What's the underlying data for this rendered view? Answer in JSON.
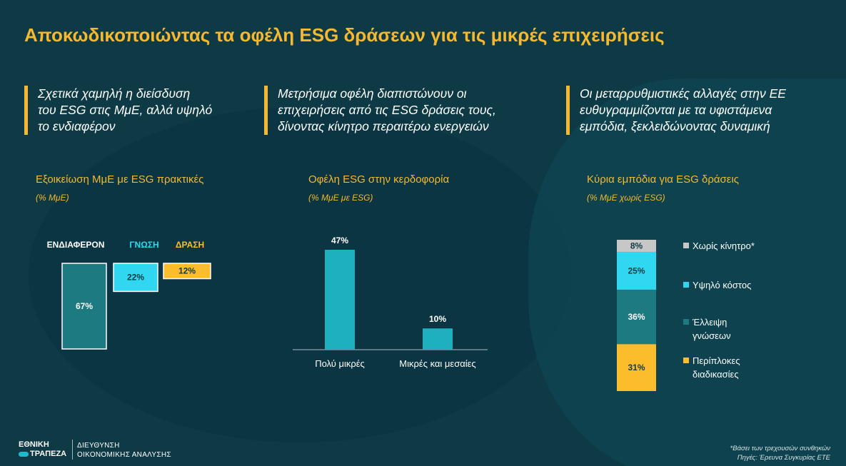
{
  "title": "Αποκωδικοποιώντας τα οφέλη ESG δράσεων για τις μικρές επιχειρήσεις",
  "columns": [
    {
      "heading": [
        "Σχετικά χαμηλή η διείσδυση",
        "του ESG στις ΜμΕ, αλλά υψηλό",
        "το ενδιαφέρον"
      ]
    },
    {
      "heading": [
        "Μετρήσιμα οφέλη διαπιστώνουν οι",
        "επιχειρήσεις από τις ESG δράσεις τους,",
        "δίνοντας κίνητρο περαιτέρω ενεργειών"
      ]
    },
    {
      "heading": [
        "Οι μεταρρυθμιστικές αλλαγές στην ΕΕ",
        "ευθυγραμμίζονται με τα υφιστάμενα",
        "εμπόδια, ξεκλειδώνοντας δυναμική"
      ]
    }
  ],
  "colors": {
    "dark_teal": "#1c7a80",
    "cyan": "#2fd8f0",
    "amber": "#fbbd2c",
    "grey": "#c7c7c7",
    "bar_teal": "#1fb0c0"
  },
  "chart_data": [
    {
      "type": "bar",
      "title": "Εξοικείωση ΜμΕ με ESG πρακτικές",
      "subtitle": "(% ΜμΕ)",
      "categories": [
        "ΕΝΔΙΑΦΕΡΟΝ",
        "ΓΝΩΣΗ",
        "ΔΡΑΣΗ"
      ],
      "values": [
        67,
        22,
        12
      ],
      "labels": [
        "67%",
        "22%",
        "12%"
      ],
      "category_colors": [
        "#ffffff",
        "#2fd8f0",
        "#fbbd2c"
      ],
      "bar_colors": [
        "#1c7a80",
        "#2fd8f0",
        "#fbbd2c"
      ]
    },
    {
      "type": "bar",
      "title": "Οφέλη ESG στην κερδοφορία",
      "subtitle": "(% ΜμΕ με ESG)",
      "categories": [
        "Πολύ μικρές",
        "Μικρές και μεσαίες"
      ],
      "values": [
        47,
        10
      ],
      "labels": [
        "47%",
        "10%"
      ],
      "ylim": [
        0,
        47
      ]
    },
    {
      "type": "bar",
      "stacked": true,
      "title": "Κύρια εμπόδια για ESG δράσεις",
      "subtitle": "(% ΜμΕ χωρίς ESG)",
      "series": [
        {
          "name": "Χωρίς κίνητρο*",
          "value": 8,
          "label": "8%",
          "color": "#c7c7c7"
        },
        {
          "name": "Υψηλό κόστος",
          "value": 25,
          "label": "25%",
          "color": "#2fd8f0"
        },
        {
          "name": "Έλλειψη γνώσεων",
          "value": 36,
          "label": "36%",
          "color": "#1c7a80"
        },
        {
          "name": "Περίπλοκες διαδικασίες",
          "value": 31,
          "label": "31%",
          "color": "#fbbd2c"
        }
      ],
      "legend_lines": [
        [
          "Χωρίς κίνητρο*"
        ],
        [
          "Υψηλό κόστος"
        ],
        [
          "Έλλειψη",
          "γνώσεων"
        ],
        [
          "Περίπλοκες",
          "διαδικασίες"
        ]
      ]
    }
  ],
  "footer": {
    "logo": [
      "ΕΘΝΙΚΗ",
      "ΤΡΑΠΕΖΑ"
    ],
    "dept": [
      "ΔΙΕΥΘΥΝΣΗ",
      "ΟΙΚΟΝΟΜΙΚΗΣ ΑΝΑΛΥΣΗΣ"
    ],
    "note": "*Βάσει των τρεχουσών συνθηκών",
    "source": "Πηγές: Έρευνα Συγκυρίας ΕΤΕ"
  }
}
